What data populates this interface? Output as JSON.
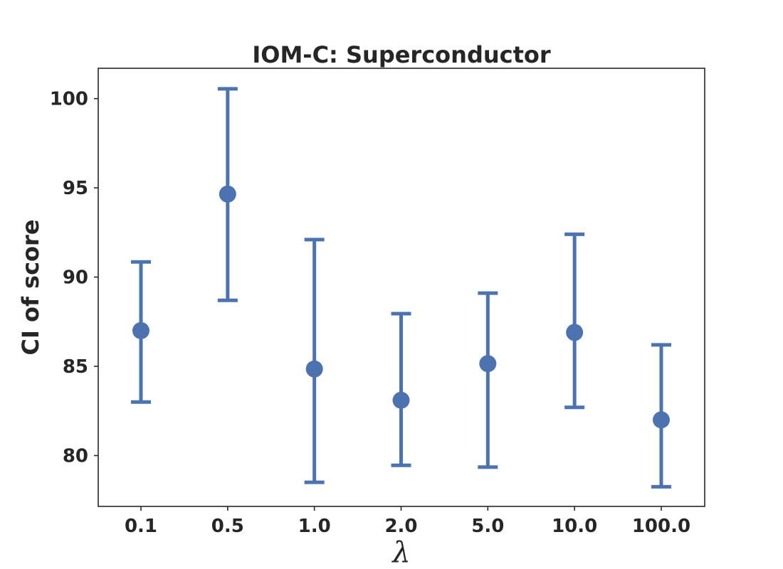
{
  "chart_data": {
    "type": "scatter",
    "title": "IOM-C: Superconductor",
    "xlabel": "λ",
    "ylabel": "CI of score",
    "categories": [
      "0.1",
      "0.5",
      "1.0",
      "2.0",
      "5.0",
      "10.0",
      "100.0"
    ],
    "series": [
      {
        "values": [
          87.0,
          94.65,
          84.85,
          83.1,
          85.15,
          86.9,
          82.0
        ],
        "lower": [
          83.0,
          88.7,
          78.5,
          79.45,
          79.35,
          82.7,
          78.25
        ],
        "upper": [
          90.85,
          100.55,
          92.1,
          87.95,
          89.1,
          92.4,
          86.2
        ]
      }
    ],
    "yticks": [
      "80",
      "85",
      "90",
      "95",
      "100"
    ],
    "ylim": [
      77.15,
      101.7
    ],
    "grid": false,
    "colors": {
      "series": "#4c72b0",
      "text": "#262626",
      "axes": "#262626"
    }
  }
}
